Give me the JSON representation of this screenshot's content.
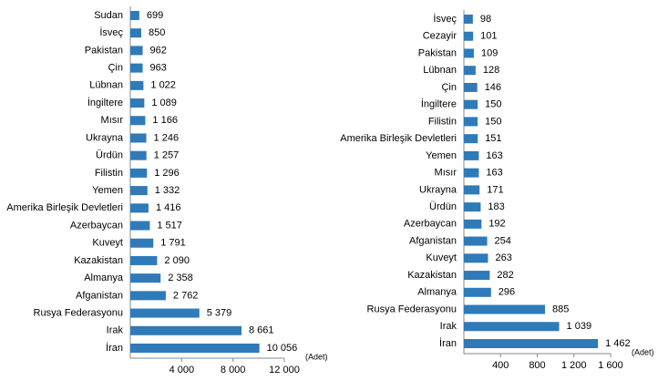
{
  "chart_data": [
    {
      "type": "bar",
      "orientation": "horizontal",
      "color": "#2f7ab9",
      "x_label": "(Adet)",
      "categories": [
        "Sudan",
        "İsveç",
        "Pakistan",
        "Çin",
        "Lübnan",
        "İngiltere",
        "Mısır",
        "Ukrayna",
        "Ürdün",
        "Filistin",
        "Yemen",
        "Amerika Birleşik Devletleri",
        "Azerbaycan",
        "Kuveyt",
        "Kazakistan",
        "Almanya",
        "Afganistan",
        "Rusya Federasyonu",
        "Irak",
        "İran"
      ],
      "values": [
        699,
        850,
        962,
        963,
        1022,
        1089,
        1166,
        1246,
        1257,
        1296,
        1332,
        1416,
        1517,
        1791,
        2090,
        2358,
        2762,
        5379,
        8661,
        10056
      ],
      "value_labels": [
        "699",
        "850",
        "962",
        "963",
        "1 022",
        "1 089",
        "1 166",
        "1 246",
        "1 257",
        "1 296",
        "1 332",
        "1 416",
        "1 517",
        "1 791",
        "2 090",
        "2 358",
        "2 762",
        "5 379",
        "8 661",
        "10 056"
      ],
      "xlim": [
        0,
        12000
      ],
      "xticks": [
        {
          "value": 4000,
          "label": "4 000"
        },
        {
          "value": 8000,
          "label": "8 000"
        },
        {
          "value": 12000,
          "label": "12 000"
        }
      ]
    },
    {
      "type": "bar",
      "orientation": "horizontal",
      "color": "#2f7ab9",
      "x_label": "(Adet)",
      "categories": [
        "İsveç",
        "Cezayir",
        "Pakistan",
        "Lübnan",
        "Çin",
        "İngiltere",
        "Filistin",
        "Amerika Birleşik Devletleri",
        "Yemen",
        "Mısır",
        "Ukrayna",
        "Ürdün",
        "Azerbaycan",
        "Afganistan",
        "Kuveyt",
        "Kazakistan",
        "Almanya",
        "Rusya Federasyonu",
        "Irak",
        "İran"
      ],
      "values": [
        98,
        101,
        109,
        128,
        146,
        150,
        150,
        151,
        163,
        163,
        171,
        183,
        192,
        254,
        263,
        282,
        296,
        885,
        1039,
        1462
      ],
      "value_labels": [
        "98",
        "101",
        "109",
        "128",
        "146",
        "150",
        "150",
        "151",
        "163",
        "163",
        "171",
        "183",
        "192",
        "254",
        "263",
        "282",
        "296",
        "885",
        "1 039",
        "1 462"
      ],
      "xlim": [
        0,
        1600
      ],
      "xticks": [
        400,
        800,
        {
          "value": 1200,
          "label": "1 200"
        },
        {
          "value": 1600,
          "label": "1 600"
        }
      ]
    }
  ]
}
